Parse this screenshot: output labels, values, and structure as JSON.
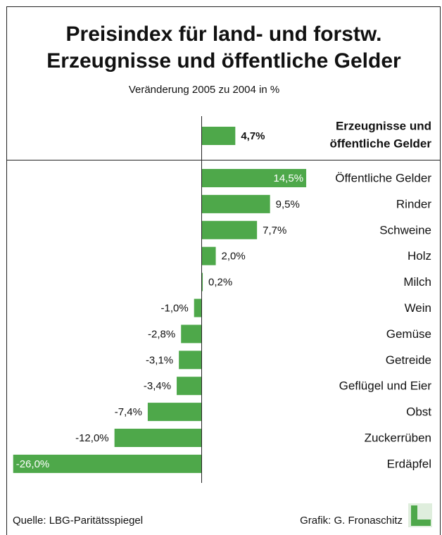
{
  "chart_data": {
    "type": "hbar",
    "title": [
      "Preisindex für land- und forstw.",
      "Erzeugnisse und öffentliche Gelder"
    ],
    "subtitle": "Veränderung 2005 zu 2004 in %",
    "color": "#4ea84a",
    "summary": {
      "name": [
        "Erzeugnisse und",
        "öffentliche Gelder"
      ],
      "value": 4.7,
      "value_label": "4,7%"
    },
    "categories": [
      "Öffentliche Gelder",
      "Rinder",
      "Schweine",
      "Holz",
      "Milch",
      "Wein",
      "Gemüse",
      "Getreide",
      "Geflügel und Eier",
      "Obst",
      "Zuckerrüben",
      "Erdäpfel"
    ],
    "values": [
      14.5,
      9.5,
      7.7,
      2.0,
      0.2,
      -1.0,
      -2.8,
      -3.1,
      -3.4,
      -7.4,
      -12.0,
      -26.0
    ],
    "value_labels": [
      "14,5%",
      "9,5%",
      "7,7%",
      "2,0%",
      "0,2%",
      "-1,0%",
      "-2,8%",
      "-3,1%",
      "-3,4%",
      "-7,4%",
      "-12,0%",
      "-26,0%"
    ],
    "source": "Quelle: LBG-Paritätsspiegel",
    "credit": "Grafik: G. Fronaschitz"
  }
}
